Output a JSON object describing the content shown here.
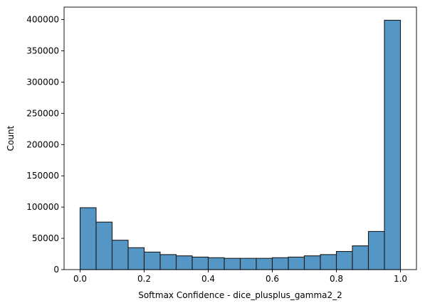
{
  "chart_data": {
    "type": "bar",
    "subtype": "histogram",
    "title": "",
    "xlabel": "Softmax Confidence - dice_plusplus_gamma2_2",
    "ylabel": "Count",
    "xlim": [
      -0.05,
      1.05
    ],
    "ylim": [
      0,
      420000
    ],
    "xticks": [
      0.0,
      0.2,
      0.4,
      0.6,
      0.8,
      1.0
    ],
    "xtick_labels": [
      "0.0",
      "0.2",
      "0.4",
      "0.6",
      "0.8",
      "1.0"
    ],
    "yticks": [
      0,
      50000,
      100000,
      150000,
      200000,
      250000,
      300000,
      350000,
      400000
    ],
    "ytick_labels": [
      "0",
      "50000",
      "100000",
      "150000",
      "200000",
      "250000",
      "300000",
      "350000",
      "400000"
    ],
    "bin_width": 0.05,
    "bin_edges": [
      0.0,
      0.05,
      0.1,
      0.15,
      0.2,
      0.25,
      0.3,
      0.35,
      0.4,
      0.45,
      0.5,
      0.55,
      0.6,
      0.65,
      0.7,
      0.75,
      0.8,
      0.85,
      0.9,
      0.95,
      1.0
    ],
    "values": [
      99000,
      76000,
      47000,
      35000,
      28000,
      24000,
      22000,
      20000,
      19000,
      18000,
      18000,
      18000,
      19000,
      20000,
      22000,
      24000,
      29000,
      38000,
      61000,
      399000
    ],
    "grid": false,
    "legend": "none",
    "bar_color": "#5497c6",
    "edge_color": "#1a1a1a"
  }
}
